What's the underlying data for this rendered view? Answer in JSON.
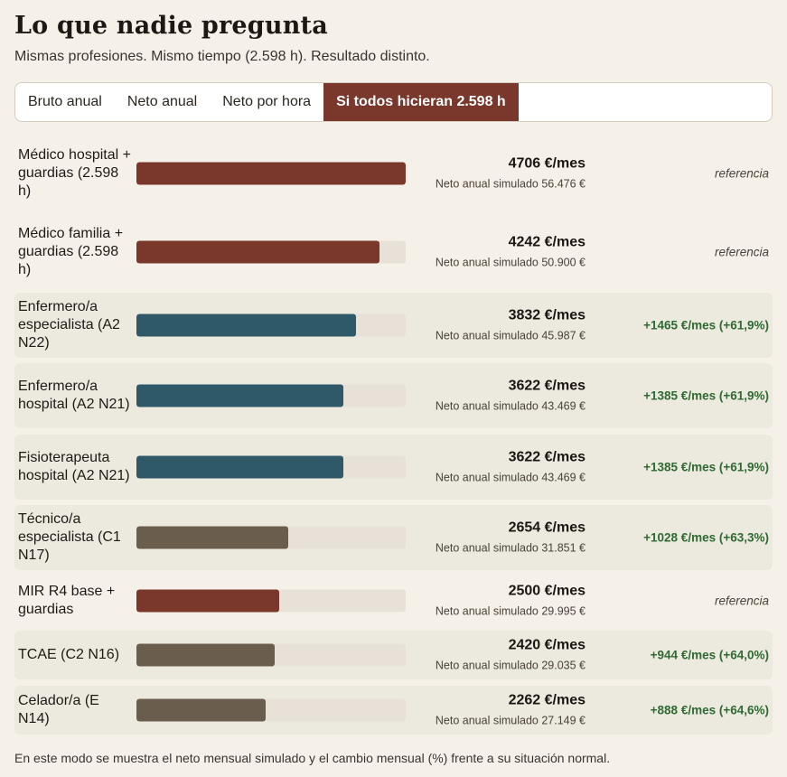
{
  "header": {
    "title": "Lo que nadie pregunta",
    "subtitle": "Mismas profesiones. Mismo tiempo (2.598 h). Resultado distinto."
  },
  "tabs": [
    {
      "label": "Bruto anual",
      "active": false
    },
    {
      "label": "Neto anual",
      "active": false
    },
    {
      "label": "Neto por hora",
      "active": false
    },
    {
      "label": "Si todos hicieran 2.598 h",
      "active": true
    }
  ],
  "colors": {
    "medico": "#7a372b",
    "enfermeria": "#2f5968",
    "tecnico": "#6b5d4d",
    "track": "#e8e1d8",
    "positive": "#2f6a32"
  },
  "chart_data": {
    "type": "bar",
    "orientation": "horizontal",
    "unit": "€/mes",
    "xlim": [
      0,
      4706
    ],
    "categories": [
      "Médico hospital + guardias (2.598 h)",
      "Médico familia + guardias (2.598 h)",
      "Enfermero/a especialista (A2 N22)",
      "Enfermero/a hospital (A2 N21)",
      "Fisioterapeuta hospital (A2 N21)",
      "Técnico/a especialista (C1 N17)",
      "MIR R4 base + guardias",
      "TCAE (C2 N16)",
      "Celador/a (E N14)"
    ],
    "values": [
      4706,
      4242,
      3832,
      3622,
      3622,
      2654,
      2500,
      2420,
      2262
    ],
    "rows": [
      {
        "label": "Médico hospital + guardias (2.598 h)",
        "value": 4706,
        "value_label": "4706 €/mes",
        "sub": "Neto anual simulado 56.476 €",
        "delta": "referencia",
        "delta_type": "ref",
        "color": "medico",
        "shaded": false
      },
      {
        "label": "Médico familia + guardias (2.598 h)",
        "value": 4242,
        "value_label": "4242 €/mes",
        "sub": "Neto anual simulado 50.900 €",
        "delta": "referencia",
        "delta_type": "ref",
        "color": "medico",
        "shaded": false
      },
      {
        "label": "Enfermero/a especialista (A2 N22)",
        "value": 3832,
        "value_label": "3832 €/mes",
        "sub": "Neto anual simulado 45.987 €",
        "delta": "+1465 €/mes (+61,9%)",
        "delta_type": "pos",
        "color": "enfermeria",
        "shaded": true
      },
      {
        "label": "Enfermero/a hospital (A2 N21)",
        "value": 3622,
        "value_label": "3622 €/mes",
        "sub": "Neto anual simulado 43.469 €",
        "delta": "+1385 €/mes (+61,9%)",
        "delta_type": "pos",
        "color": "enfermeria",
        "shaded": true
      },
      {
        "label": "Fisioterapeuta hospital (A2 N21)",
        "value": 3622,
        "value_label": "3622 €/mes",
        "sub": "Neto anual simulado 43.469 €",
        "delta": "+1385 €/mes (+61,9%)",
        "delta_type": "pos",
        "color": "enfermeria",
        "shaded": true
      },
      {
        "label": "Técnico/a especialista (C1 N17)",
        "value": 2654,
        "value_label": "2654 €/mes",
        "sub": "Neto anual simulado 31.851 €",
        "delta": "+1028 €/mes (+63,3%)",
        "delta_type": "pos",
        "color": "tecnico",
        "shaded": true
      },
      {
        "label": "MIR R4 base + guardias",
        "value": 2500,
        "value_label": "2500 €/mes",
        "sub": "Neto anual simulado 29.995 €",
        "delta": "referencia",
        "delta_type": "ref",
        "color": "medico",
        "shaded": false
      },
      {
        "label": "TCAE (C2 N16)",
        "value": 2420,
        "value_label": "2420 €/mes",
        "sub": "Neto anual simulado 29.035 €",
        "delta": "+944 €/mes (+64,0%)",
        "delta_type": "pos",
        "color": "tecnico",
        "shaded": true
      },
      {
        "label": "Celador/a (E N14)",
        "value": 2262,
        "value_label": "2262 €/mes",
        "sub": "Neto anual simulado 27.149 €",
        "delta": "+888 €/mes (+64,6%)",
        "delta_type": "pos",
        "color": "tecnico",
        "shaded": true
      }
    ]
  },
  "footnote": "En este modo se muestra el neto mensual simulado y el cambio mensual (%) frente a su situación normal."
}
